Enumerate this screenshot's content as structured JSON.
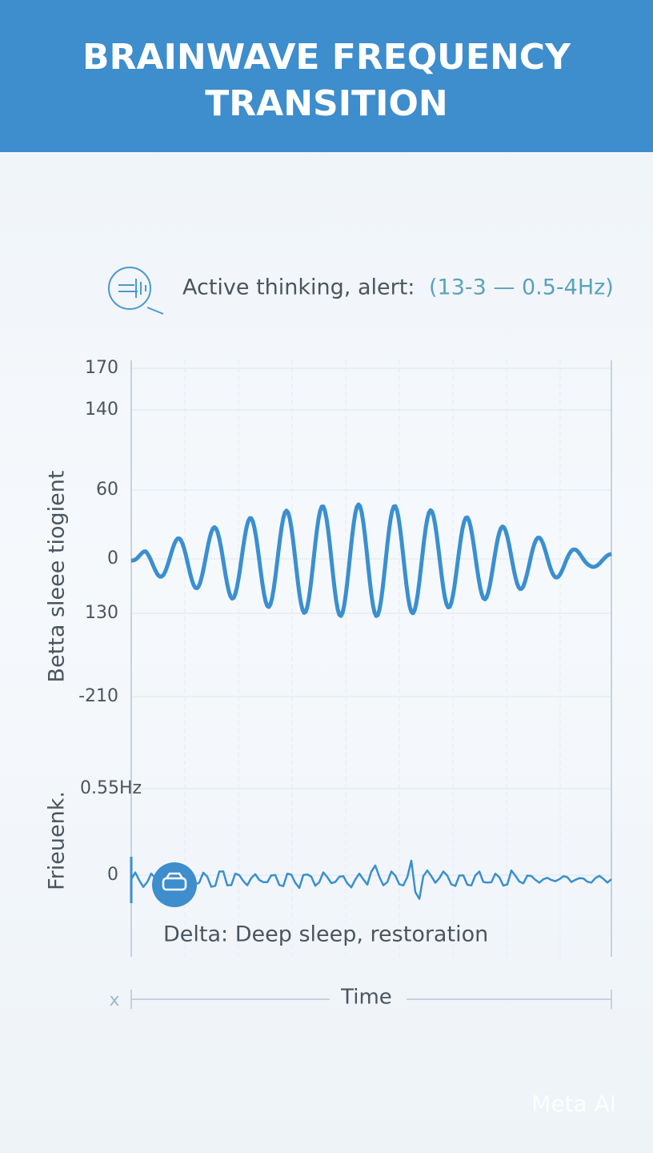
{
  "header": {
    "title_lines": [
      "BRAINWAVE FREQUENCY",
      "TRANSITION"
    ]
  },
  "legend": {
    "label": "Active thinking, alert:",
    "range": "(13-3 — 0.5-4Hz)"
  },
  "plot": {
    "y_axis_label": "Betta sleee tiogient",
    "tick_labels": [
      "170",
      "140",
      "60",
      "0",
      "130",
      "-210"
    ],
    "lower_label": "0.55Hz",
    "lower_zero": "0",
    "lower_axis_label": "Frieuenk.",
    "delta_caption": "Delta: Deep sleep, restoration",
    "x_marker": "x",
    "x_axis_label": "Time"
  },
  "watermark": "Meta AI"
}
